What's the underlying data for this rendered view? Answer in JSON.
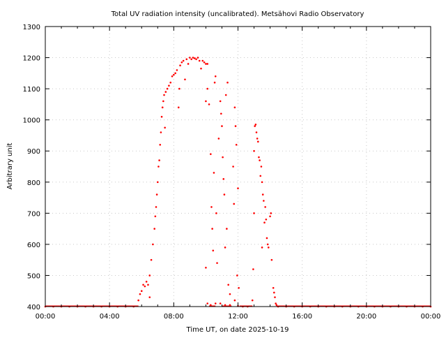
{
  "chart_data": {
    "type": "scatter",
    "title": "Total UV radiation intensity (uncalibrated). Metsähovi Radio Observatory",
    "xlabel": "Time UT, on date 2025-10-19",
    "ylabel": "Arbitrary unit",
    "xlim": [
      0,
      24
    ],
    "ylim": [
      400,
      1300
    ],
    "x_unit": "hours",
    "x_ticks": [
      0,
      4,
      8,
      12,
      16,
      20,
      24
    ],
    "x_tick_labels": [
      "00:00",
      "04:00",
      "08:00",
      "12:00",
      "16:00",
      "20:00",
      "00:00"
    ],
    "y_ticks": [
      400,
      500,
      600,
      700,
      800,
      900,
      1000,
      1100,
      1200,
      1300
    ],
    "y_tick_labels": [
      "400",
      "500",
      "600",
      "700",
      "800",
      "900",
      "1000",
      "1100",
      "1200",
      "1300"
    ],
    "grid": true,
    "series_color": "#ff0000",
    "points": [
      [
        0,
        400
      ],
      [
        0.5,
        400
      ],
      [
        1,
        400
      ],
      [
        1.5,
        400
      ],
      [
        2,
        400
      ],
      [
        2.5,
        400
      ],
      [
        3,
        400
      ],
      [
        3.5,
        400
      ],
      [
        4,
        400
      ],
      [
        4.5,
        400
      ],
      [
        5,
        400
      ],
      [
        5.5,
        400
      ],
      [
        5.8,
        420
      ],
      [
        5.9,
        440
      ],
      [
        6.0,
        450
      ],
      [
        6.1,
        470
      ],
      [
        6.2,
        465
      ],
      [
        6.3,
        480
      ],
      [
        6.4,
        470
      ],
      [
        6.5,
        430
      ],
      [
        6.5,
        500
      ],
      [
        6.6,
        550
      ],
      [
        6.7,
        600
      ],
      [
        6.8,
        650
      ],
      [
        6.85,
        690
      ],
      [
        6.9,
        720
      ],
      [
        6.95,
        760
      ],
      [
        7.0,
        800
      ],
      [
        7.05,
        850
      ],
      [
        7.1,
        870
      ],
      [
        7.15,
        920
      ],
      [
        7.2,
        960
      ],
      [
        7.25,
        1010
      ],
      [
        7.3,
        1040
      ],
      [
        7.35,
        1060
      ],
      [
        7.4,
        1080
      ],
      [
        7.45,
        975
      ],
      [
        7.5,
        1090
      ],
      [
        7.6,
        1100
      ],
      [
        7.7,
        1110
      ],
      [
        7.8,
        1120
      ],
      [
        7.9,
        1140
      ],
      [
        8.0,
        1145
      ],
      [
        8.1,
        1150
      ],
      [
        8.2,
        1160
      ],
      [
        8.3,
        1040
      ],
      [
        8.35,
        1100
      ],
      [
        8.4,
        1175
      ],
      [
        8.5,
        1185
      ],
      [
        8.6,
        1190
      ],
      [
        8.7,
        1130
      ],
      [
        8.8,
        1195
      ],
      [
        8.9,
        1180
      ],
      [
        9.0,
        1200
      ],
      [
        9.1,
        1195
      ],
      [
        9.2,
        1200
      ],
      [
        9.3,
        1198
      ],
      [
        9.4,
        1195
      ],
      [
        9.5,
        1200
      ],
      [
        9.6,
        1190
      ],
      [
        9.7,
        1165
      ],
      [
        9.8,
        1190
      ],
      [
        9.9,
        1185
      ],
      [
        10.0,
        1180
      ],
      [
        10.1,
        1180
      ],
      [
        10.0,
        1060
      ],
      [
        10.1,
        1100
      ],
      [
        10.2,
        1050
      ],
      [
        10.3,
        890
      ],
      [
        10.35,
        720
      ],
      [
        10.4,
        650
      ],
      [
        10.45,
        580
      ],
      [
        10.5,
        830
      ],
      [
        10.55,
        1120
      ],
      [
        10.6,
        1140
      ],
      [
        10.65,
        700
      ],
      [
        10.7,
        540
      ],
      [
        10.8,
        940
      ],
      [
        10.9,
        1060
      ],
      [
        10.95,
        1020
      ],
      [
        11.0,
        980
      ],
      [
        11.05,
        880
      ],
      [
        11.1,
        810
      ],
      [
        11.15,
        760
      ],
      [
        11.2,
        590
      ],
      [
        11.25,
        1080
      ],
      [
        11.3,
        650
      ],
      [
        11.35,
        1120
      ],
      [
        11.4,
        470
      ],
      [
        11.5,
        440
      ],
      [
        11.7,
        850
      ],
      [
        11.75,
        730
      ],
      [
        11.8,
        1040
      ],
      [
        11.85,
        980
      ],
      [
        11.9,
        920
      ],
      [
        11.95,
        500
      ],
      [
        12.0,
        780
      ],
      [
        12.05,
        460
      ],
      [
        10.0,
        525
      ],
      [
        10.1,
        410
      ],
      [
        10.3,
        405
      ],
      [
        10.6,
        410
      ],
      [
        10.9,
        410
      ],
      [
        11.2,
        405
      ],
      [
        11.5,
        405
      ],
      [
        11.8,
        420
      ],
      [
        12.0,
        402
      ],
      [
        12.3,
        400
      ],
      [
        12.6,
        400
      ],
      [
        12.9,
        420
      ],
      [
        12.95,
        520
      ],
      [
        13.0,
        700
      ],
      [
        13.05,
        980
      ],
      [
        13.1,
        985
      ],
      [
        13.15,
        960
      ],
      [
        13.2,
        940
      ],
      [
        13.25,
        930
      ],
      [
        13.3,
        880
      ],
      [
        13.35,
        870
      ],
      [
        13.4,
        820
      ],
      [
        13.45,
        850
      ],
      [
        13.5,
        800
      ],
      [
        13.55,
        760
      ],
      [
        13.6,
        740
      ],
      [
        13.65,
        670
      ],
      [
        13.7,
        720
      ],
      [
        13.75,
        680
      ],
      [
        13.8,
        620
      ],
      [
        13.85,
        600
      ],
      [
        13.9,
        590
      ],
      [
        14.0,
        690
      ],
      [
        14.05,
        700
      ],
      [
        14.1,
        550
      ],
      [
        14.2,
        460
      ],
      [
        14.25,
        445
      ],
      [
        14.3,
        430
      ],
      [
        14.35,
        410
      ],
      [
        14.4,
        405
      ],
      [
        13.0,
        900
      ],
      [
        13.5,
        590
      ],
      [
        14.5,
        400
      ],
      [
        15,
        400
      ],
      [
        15.5,
        400
      ],
      [
        16,
        400
      ],
      [
        16.5,
        400
      ],
      [
        17,
        400
      ],
      [
        17.5,
        400
      ],
      [
        18,
        400
      ],
      [
        18.5,
        400
      ],
      [
        19,
        400
      ],
      [
        19.5,
        400
      ],
      [
        20,
        400
      ],
      [
        20.5,
        400
      ],
      [
        21,
        400
      ],
      [
        21.5,
        400
      ],
      [
        22,
        400
      ],
      [
        22.5,
        400
      ],
      [
        23,
        400
      ],
      [
        23.5,
        400
      ],
      [
        24,
        400
      ]
    ]
  }
}
